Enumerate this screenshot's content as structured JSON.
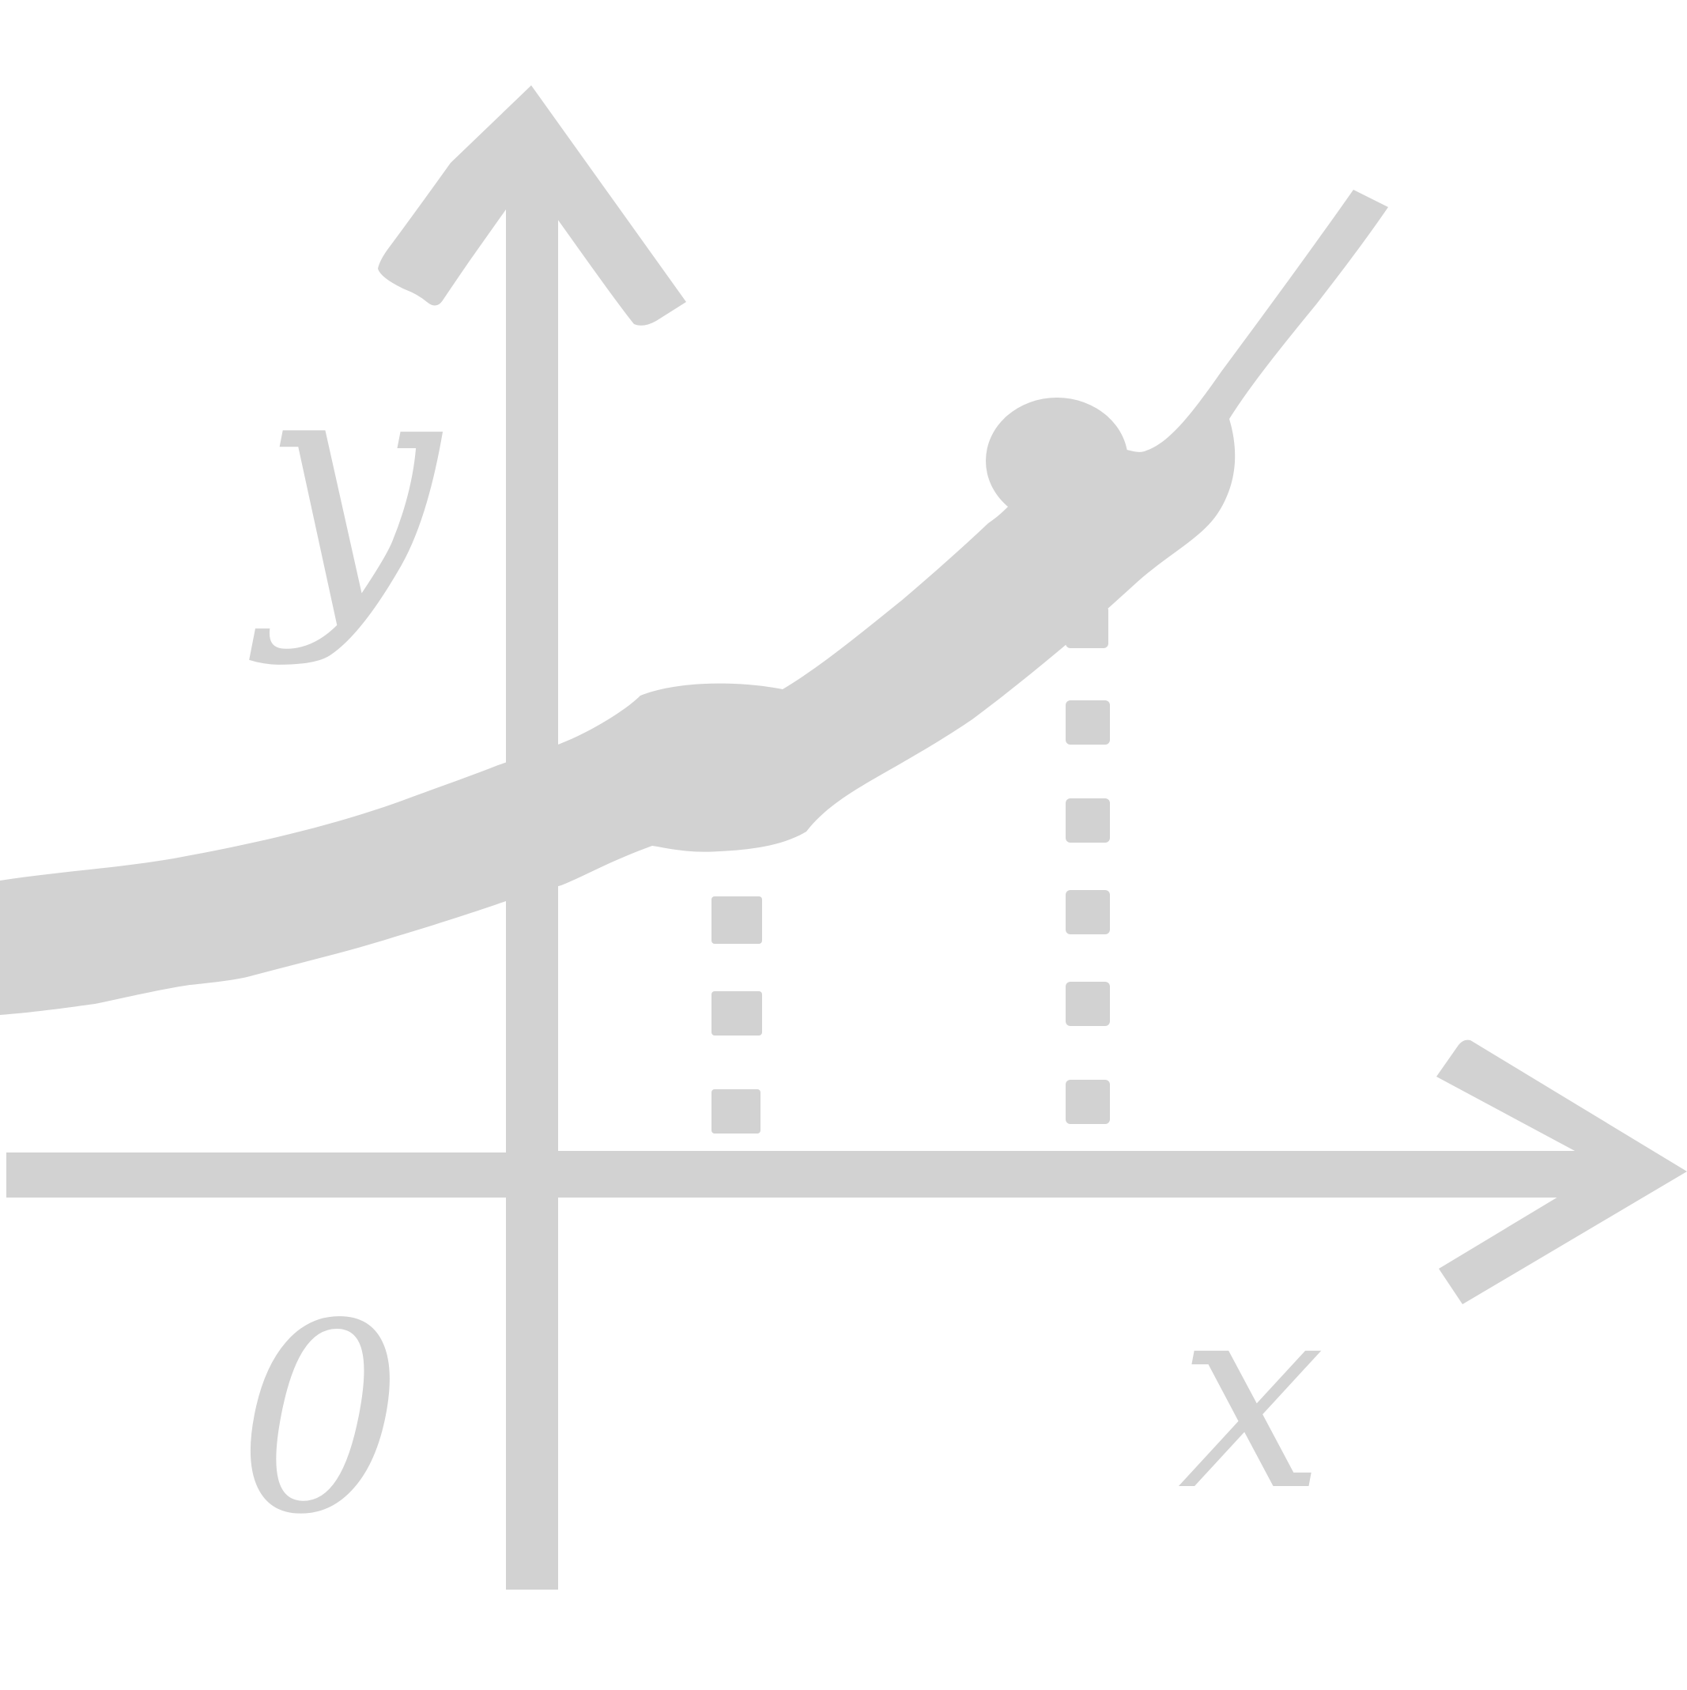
{
  "icon": {
    "name": "function-graph-icon",
    "color": "#d2d2d2",
    "background": "#ffffff"
  },
  "labels": {
    "y_axis": "y",
    "x_axis": "x",
    "origin": "0"
  }
}
